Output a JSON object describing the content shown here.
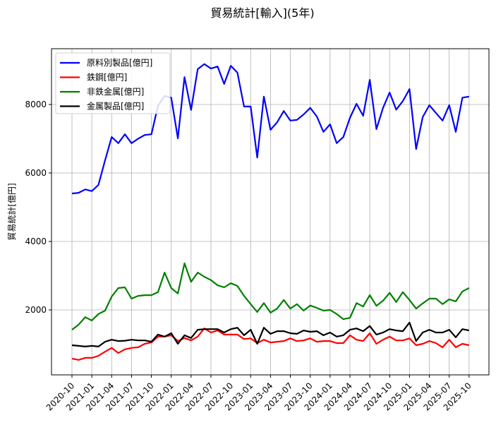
{
  "chart_data": {
    "type": "line",
    "title": "貿易統計[輸入](5年)",
    "xlabel": "",
    "ylabel": "貿易統計[億円]",
    "ylim": [
      0,
      9600
    ],
    "yticks": [
      2000,
      4000,
      6000,
      8000
    ],
    "grid": true,
    "legend_position": "upper left",
    "xtick_labels": [
      "2020-10",
      "2021-01",
      "2021-04",
      "2021-07",
      "2021-10",
      "2022-01",
      "2022-04",
      "2022-07",
      "2022-10",
      "2023-01",
      "2023-04",
      "2023-07",
      "2023-10",
      "2024-01",
      "2024-04",
      "2024-07",
      "2024-10",
      "2025-01",
      "2025-04",
      "2025-07",
      "2025-10"
    ],
    "x": [
      "2020-10",
      "2020-11",
      "2020-12",
      "2021-01",
      "2021-02",
      "2021-03",
      "2021-04",
      "2021-05",
      "2021-06",
      "2021-07",
      "2021-08",
      "2021-09",
      "2021-10",
      "2021-11",
      "2021-12",
      "2022-01",
      "2022-02",
      "2022-03",
      "2022-04",
      "2022-05",
      "2022-06",
      "2022-07",
      "2022-08",
      "2022-09",
      "2022-10",
      "2022-11",
      "2022-12",
      "2023-01",
      "2023-02",
      "2023-03",
      "2023-04",
      "2023-05",
      "2023-06",
      "2023-07",
      "2023-08",
      "2023-09",
      "2023-10",
      "2023-11",
      "2023-12",
      "2024-01",
      "2024-02",
      "2024-03",
      "2024-04",
      "2024-05",
      "2024-06",
      "2024-07",
      "2024-08",
      "2024-09",
      "2024-10",
      "2024-11",
      "2024-12",
      "2025-01",
      "2025-02",
      "2025-03",
      "2025-04",
      "2025-05",
      "2025-06",
      "2025-07",
      "2025-08",
      "2025-09",
      "2025-10"
    ],
    "series": [
      {
        "name": "原料別製品[億円]",
        "color": "#0000ff",
        "values": [
          5400,
          5420,
          5520,
          5470,
          5650,
          6370,
          7050,
          6870,
          7130,
          6870,
          7000,
          7110,
          7130,
          7960,
          8250,
          8200,
          7010,
          8800,
          7840,
          9030,
          9180,
          9050,
          9110,
          8600,
          9130,
          8930,
          7940,
          7940,
          6450,
          8230,
          7260,
          7480,
          7810,
          7530,
          7550,
          7710,
          7900,
          7650,
          7200,
          7420,
          6870,
          7050,
          7610,
          8020,
          7670,
          8720,
          7280,
          7900,
          8350,
          7850,
          8100,
          8450,
          6700,
          7630,
          7980,
          7750,
          7530,
          7980,
          7200,
          8200,
          8230
        ]
      },
      {
        "name": "鉄鋼[億円]",
        "color": "#ff0000",
        "values": [
          580,
          540,
          600,
          600,
          660,
          780,
          890,
          740,
          850,
          890,
          910,
          1010,
          1050,
          1220,
          1220,
          1260,
          1090,
          1180,
          1110,
          1220,
          1460,
          1340,
          1400,
          1280,
          1280,
          1280,
          1150,
          1170,
          1030,
          1130,
          1050,
          1070,
          1090,
          1170,
          1090,
          1110,
          1170,
          1070,
          1090,
          1090,
          1030,
          1030,
          1260,
          1130,
          1090,
          1320,
          1010,
          1130,
          1220,
          1110,
          1110,
          1170,
          970,
          1010,
          1090,
          1030,
          910,
          1130,
          910,
          1010,
          970
        ]
      },
      {
        "name": "非鉄金属[億円]",
        "color": "#008000",
        "values": [
          1420,
          1570,
          1790,
          1690,
          1880,
          1980,
          2390,
          2640,
          2660,
          2330,
          2410,
          2430,
          2430,
          2520,
          3090,
          2640,
          2480,
          3360,
          2820,
          3090,
          2970,
          2870,
          2720,
          2660,
          2780,
          2700,
          2410,
          2170,
          1940,
          2200,
          1920,
          2040,
          2290,
          2040,
          2170,
          1980,
          2130,
          2060,
          1980,
          2000,
          1880,
          1730,
          1770,
          2200,
          2100,
          2430,
          2120,
          2270,
          2500,
          2230,
          2520,
          2290,
          2040,
          2190,
          2330,
          2330,
          2170,
          2310,
          2250,
          2540,
          2640
        ]
      },
      {
        "name": "金属製品[億円]",
        "color": "#000000",
        "values": [
          970,
          950,
          930,
          950,
          930,
          1070,
          1130,
          1090,
          1100,
          1130,
          1110,
          1110,
          1070,
          1280,
          1220,
          1320,
          1010,
          1260,
          1180,
          1420,
          1440,
          1440,
          1440,
          1340,
          1440,
          1480,
          1260,
          1420,
          1010,
          1480,
          1300,
          1380,
          1380,
          1320,
          1300,
          1400,
          1360,
          1380,
          1260,
          1340,
          1220,
          1260,
          1420,
          1460,
          1380,
          1530,
          1280,
          1340,
          1440,
          1400,
          1380,
          1630,
          1090,
          1340,
          1420,
          1340,
          1340,
          1420,
          1200,
          1440,
          1400
        ]
      }
    ]
  }
}
